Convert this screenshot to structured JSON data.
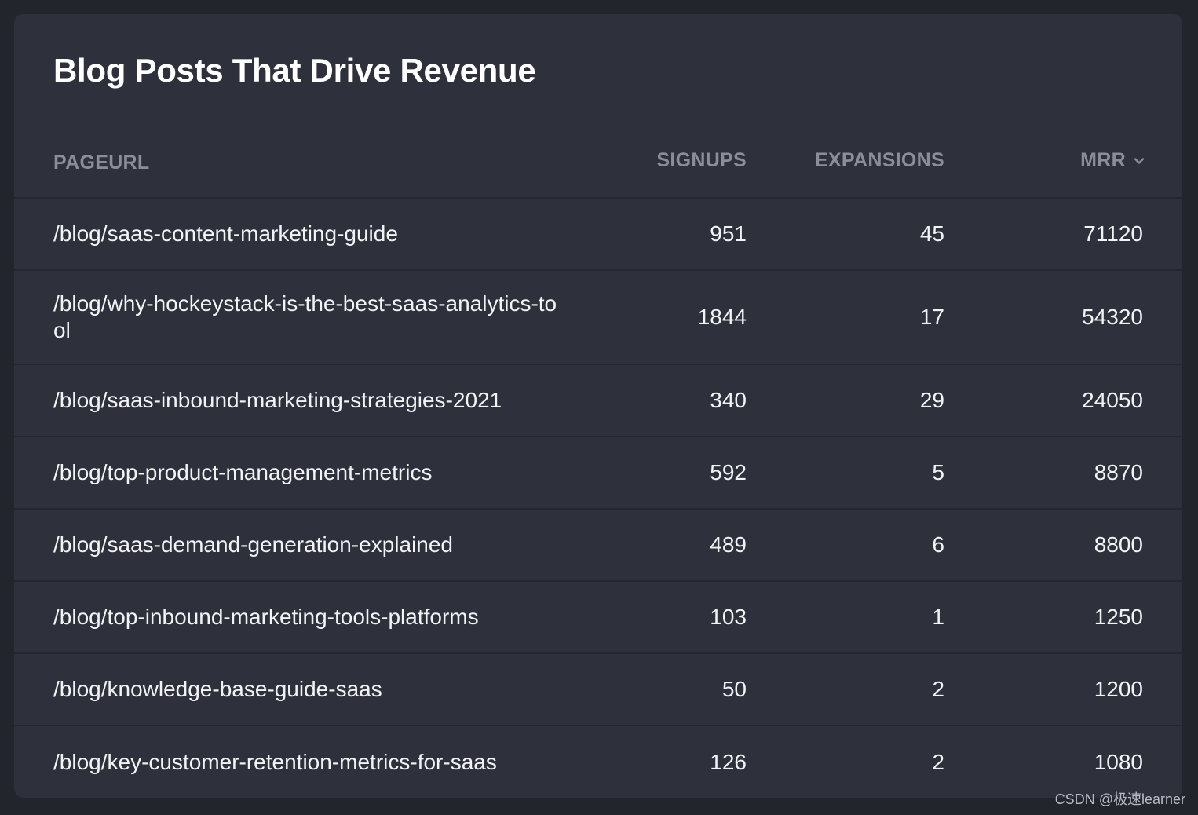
{
  "card": {
    "title": "Blog Posts That Drive Revenue"
  },
  "table": {
    "columns": {
      "pageurl": "PAGEURL",
      "signups": "SIGNUPS",
      "expansions": "EXPANSIONS",
      "mrr": "MRR"
    },
    "sort_icon": "chevron-down-icon",
    "rows": [
      {
        "pageurl": "/blog/saas-content-marketing-guide",
        "signups": "951",
        "expansions": "45",
        "mrr": "71120"
      },
      {
        "pageurl": "/blog/why-hockeystack-is-the-best-saas-analytics-tool",
        "signups": "1844",
        "expansions": "17",
        "mrr": "54320"
      },
      {
        "pageurl": "/blog/saas-inbound-marketing-strategies-2021",
        "signups": "340",
        "expansions": "29",
        "mrr": "24050"
      },
      {
        "pageurl": "/blog/top-product-management-metrics",
        "signups": "592",
        "expansions": "5",
        "mrr": "8870"
      },
      {
        "pageurl": "/blog/saas-demand-generation-explained",
        "signups": "489",
        "expansions": "6",
        "mrr": "8800"
      },
      {
        "pageurl": "/blog/top-inbound-marketing-tools-platforms",
        "signups": "103",
        "expansions": "1",
        "mrr": "1250"
      },
      {
        "pageurl": "/blog/knowledge-base-guide-saas",
        "signups": "50",
        "expansions": "2",
        "mrr": "1200"
      },
      {
        "pageurl": "/blog/key-customer-retention-metrics-for-saas",
        "signups": "126",
        "expansions": "2",
        "mrr": "1080"
      }
    ]
  },
  "watermark": "CSDN @极速learner"
}
